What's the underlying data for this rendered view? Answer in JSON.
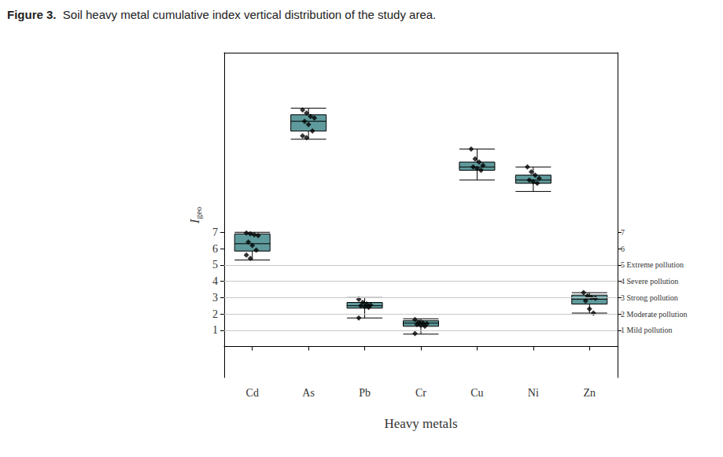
{
  "chart_data": {
    "type": "boxplot",
    "figure_label": "Figure 3.",
    "title": "Soil heavy metal cumulative index vertical distribution of the study area.",
    "x_label": "Heavy metals",
    "y_label": {
      "main": "I",
      "subscript": "geo"
    },
    "categories": [
      "Cd",
      "As",
      "Pb",
      "Cr",
      "Cu",
      "Ni",
      "Zn"
    ],
    "boxes": [
      [
        5.3,
        5.85,
        6.3,
        6.9,
        7.0
      ],
      [
        12.7,
        13.2,
        13.8,
        14.2,
        14.6
      ],
      [
        1.75,
        2.35,
        2.5,
        2.7,
        3.0
      ],
      [
        0.76,
        1.24,
        1.43,
        1.58,
        1.7
      ],
      [
        10.2,
        10.8,
        11.0,
        11.3,
        12.1
      ],
      [
        9.5,
        10.0,
        10.2,
        10.5,
        11.0
      ],
      [
        2.05,
        2.6,
        2.9,
        3.15,
        3.3
      ]
    ],
    "points": [
      [
        6.95,
        6.9,
        6.85,
        6.8,
        6.4,
        6.2,
        5.9,
        5.6,
        5.4
      ],
      [
        14.5,
        14.3,
        14.1,
        14.0,
        13.8,
        13.6,
        13.2,
        12.9,
        12.8
      ],
      [
        2.9,
        2.7,
        2.6,
        2.55,
        2.5,
        2.45,
        2.4,
        1.75
      ],
      [
        1.65,
        1.5,
        1.45,
        1.4,
        1.35,
        1.3,
        1.25,
        0.8
      ],
      [
        12.1,
        11.5,
        11.3,
        11.1,
        11.0,
        10.9,
        10.8
      ],
      [
        11.0,
        10.7,
        10.5,
        10.3,
        10.2,
        10.1,
        10.0
      ],
      [
        3.3,
        3.1,
        3.0,
        2.95,
        2.8,
        2.3,
        2.05
      ]
    ],
    "color": "#5f9a9c",
    "marker": "diamond",
    "ylim": [
      -1.9,
      18
    ],
    "yticks": [
      1,
      2,
      3,
      4,
      5,
      6,
      7
    ],
    "y2lim": [
      -1.9,
      18
    ],
    "y2ticks": [
      {
        "value": 1,
        "label": "1 Mild pollution"
      },
      {
        "value": 2,
        "label": "2 Moderate pollution"
      },
      {
        "value": 3,
        "label": "3 Strong pollution"
      },
      {
        "value": 4,
        "label": "4 Severe pollution"
      },
      {
        "value": 5,
        "label": "5 Extreme pollution"
      },
      6,
      7
    ],
    "reference_lines": [
      1,
      2,
      3,
      4,
      5
    ]
  }
}
